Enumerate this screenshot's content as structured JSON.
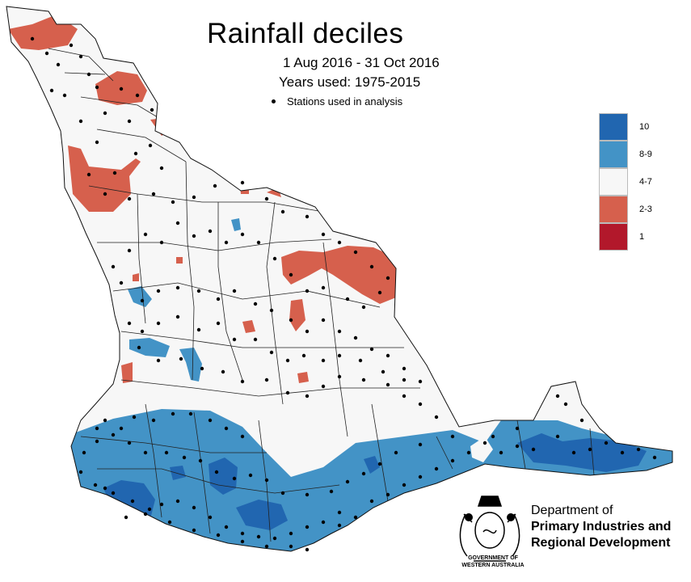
{
  "title": "Rainfall deciles",
  "period": "1 Aug 2016 - 31 Oct 2016",
  "years_used": "Years used: 1975-2015",
  "stations_label": "Stations used in analysis",
  "legend": [
    {
      "label": "10",
      "color": "#2166b0"
    },
    {
      "label": "8-9",
      "color": "#4393c6"
    },
    {
      "label": "4-7",
      "color": "#f7f7f7"
    },
    {
      "label": "2-3",
      "color": "#d6604d"
    },
    {
      "label": "1",
      "color": "#b2182b"
    }
  ],
  "department": {
    "line1": "Department of",
    "line2": "Primary Industries and",
    "line3": "Regional Development"
  },
  "government": {
    "line1": "GOVERNMENT OF",
    "line2": "WESTERN AUSTRALIA"
  }
}
